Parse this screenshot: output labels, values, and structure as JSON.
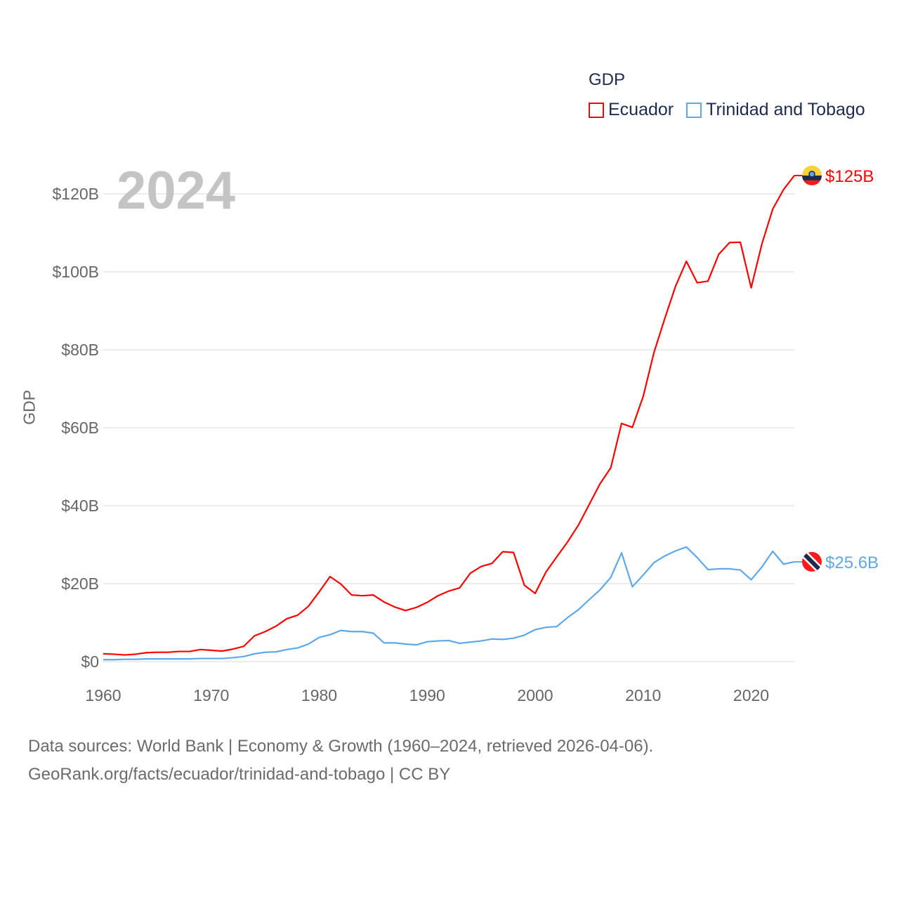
{
  "chart_data": {
    "type": "line",
    "title": "GDP",
    "year_label": "2024",
    "ylabel": "GDP",
    "xlabel": "",
    "xlim": [
      1960,
      2024
    ],
    "ylim": [
      0,
      120
    ],
    "x_ticks": [
      "1960",
      "1970",
      "1980",
      "1990",
      "2000",
      "2010",
      "2020"
    ],
    "y_ticks": [
      {
        "v": 0,
        "label": "$0"
      },
      {
        "v": 20,
        "label": "$20B"
      },
      {
        "v": 40,
        "label": "$40B"
      },
      {
        "v": 60,
        "label": "$60B"
      },
      {
        "v": 80,
        "label": "$80B"
      },
      {
        "v": 100,
        "label": "$100B"
      },
      {
        "v": 120,
        "label": "$120B"
      }
    ],
    "grid": true,
    "legend_position": "top-right",
    "x_start": 1960,
    "series": [
      {
        "name": "Ecuador",
        "color": "#ff0000",
        "end_label": "$125B",
        "values": [
          2.0,
          1.9,
          1.7,
          1.9,
          2.3,
          2.4,
          2.4,
          2.6,
          2.6,
          3.1,
          2.9,
          2.7,
          3.2,
          3.9,
          6.6,
          7.7,
          9.1,
          11.0,
          11.9,
          14.2,
          17.9,
          21.8,
          19.9,
          17.1,
          16.9,
          17.1,
          15.3,
          14.0,
          13.1,
          13.9,
          15.2,
          16.9,
          18.1,
          18.9,
          22.7,
          24.4,
          25.2,
          28.2,
          28.0,
          19.6,
          17.5,
          23.0,
          26.9,
          30.7,
          35.0,
          40.3,
          45.6,
          49.7,
          61.1,
          60.1,
          68.0,
          79.3,
          88.0,
          96.3,
          102.7,
          97.2,
          97.6,
          104.5,
          107.5,
          107.6,
          95.9,
          107.2,
          116.1,
          121.1,
          124.7
        ]
      },
      {
        "name": "Trinidad and Tobago",
        "color": "#5ea8ea",
        "end_label": "$25.6B",
        "values": [
          0.5,
          0.5,
          0.6,
          0.6,
          0.7,
          0.7,
          0.7,
          0.7,
          0.7,
          0.8,
          0.8,
          0.8,
          1.0,
          1.3,
          2.0,
          2.4,
          2.5,
          3.1,
          3.5,
          4.5,
          6.2,
          6.9,
          8.0,
          7.7,
          7.7,
          7.3,
          4.8,
          4.8,
          4.5,
          4.3,
          5.1,
          5.3,
          5.4,
          4.7,
          5.0,
          5.3,
          5.8,
          5.7,
          6.0,
          6.8,
          8.2,
          8.8,
          9.0,
          11.3,
          13.3,
          15.9,
          18.4,
          21.6,
          27.9,
          19.2,
          22.2,
          25.4,
          27.1,
          28.4,
          29.4,
          26.7,
          23.6,
          23.8,
          23.8,
          23.5,
          21.0,
          24.3,
          28.3,
          25.0,
          25.6
        ]
      }
    ]
  },
  "footer": {
    "line1": "Data sources: World Bank | Economy & Growth (1960–2024, retrieved 2026-04-06).",
    "line2": "GeoRank.org/facts/ecuador/trinidad-and-tobago | CC BY"
  }
}
